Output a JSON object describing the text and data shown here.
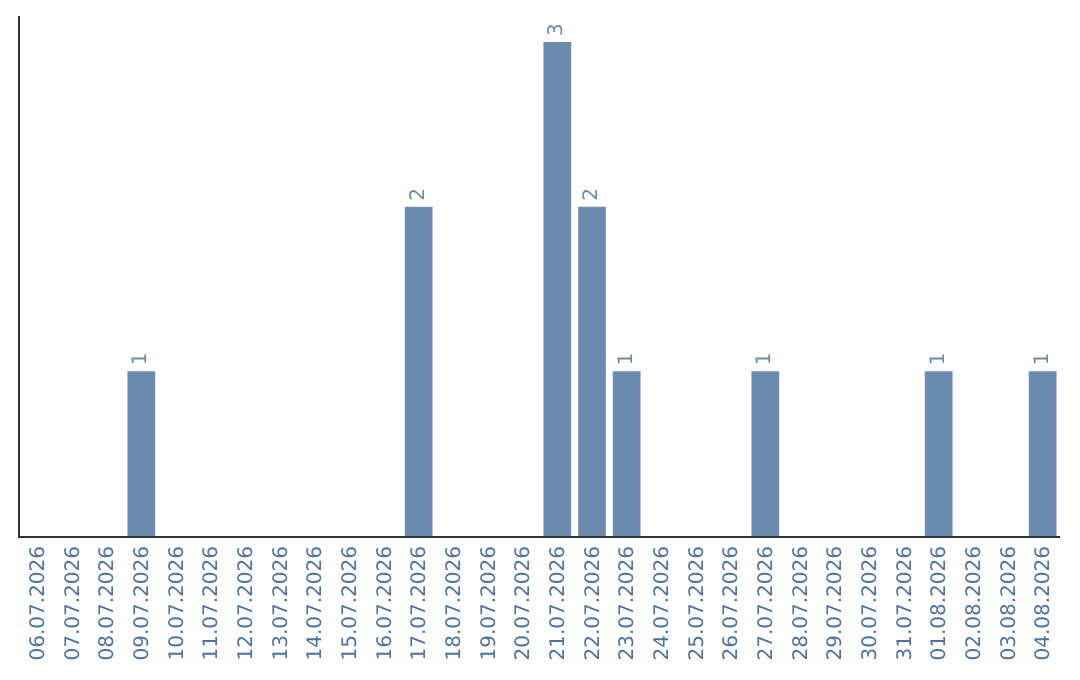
{
  "chart_data": {
    "type": "bar",
    "categories": [
      "06.07.2026",
      "07.07.2026",
      "08.07.2026",
      "09.07.2026",
      "10.07.2026",
      "11.07.2026",
      "12.07.2026",
      "13.07.2026",
      "14.07.2026",
      "15.07.2026",
      "16.07.2026",
      "17.07.2026",
      "18.07.2026",
      "19.07.2026",
      "20.07.2026",
      "21.07.2026",
      "22.07.2026",
      "23.07.2026",
      "24.07.2026",
      "25.07.2026",
      "26.07.2026",
      "27.07.2026",
      "28.07.2026",
      "29.07.2026",
      "30.07.2026",
      "31.07.2026",
      "01.08.2026",
      "02.08.2026",
      "03.08.2026",
      "04.08.2026"
    ],
    "values": [
      null,
      null,
      null,
      1,
      null,
      null,
      null,
      null,
      null,
      null,
      null,
      2,
      null,
      null,
      null,
      3,
      2,
      1,
      null,
      null,
      null,
      1,
      null,
      null,
      null,
      null,
      1,
      null,
      null,
      1
    ],
    "value_labels": [
      null,
      null,
      null,
      "1",
      null,
      null,
      null,
      null,
      null,
      null,
      null,
      "2",
      null,
      null,
      null,
      "3",
      "2",
      "1",
      null,
      null,
      null,
      "1",
      null,
      null,
      null,
      null,
      "1",
      null,
      null,
      "1"
    ],
    "color": "#6b8cae",
    "legend": false,
    "tick_labels": "x"
  }
}
